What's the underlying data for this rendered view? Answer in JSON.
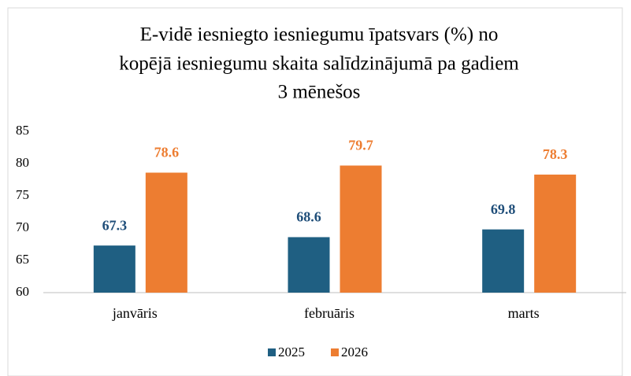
{
  "chart_data": {
    "type": "bar",
    "title": [
      "E-vidē iesniegto iesniegumu īpatsvars (%) no",
      "kopējā iesniegumu skaita salīdzinājumā pa gadiem",
      "3 mēnešos"
    ],
    "categories": [
      "janvāris",
      "februāris",
      "marts"
    ],
    "series": [
      {
        "name": "2025",
        "color": "#1f5f82",
        "label_color": "#1f4e79",
        "values": [
          67.3,
          68.6,
          69.8
        ]
      },
      {
        "name": "2026",
        "color": "#ed7d31",
        "label_color": "#ed7d31",
        "values": [
          78.6,
          79.7,
          78.3
        ]
      }
    ],
    "ylim": [
      60,
      85
    ],
    "yticks": [
      60,
      65,
      70,
      75,
      80,
      85
    ],
    "grid": false,
    "legend": "bottom"
  }
}
